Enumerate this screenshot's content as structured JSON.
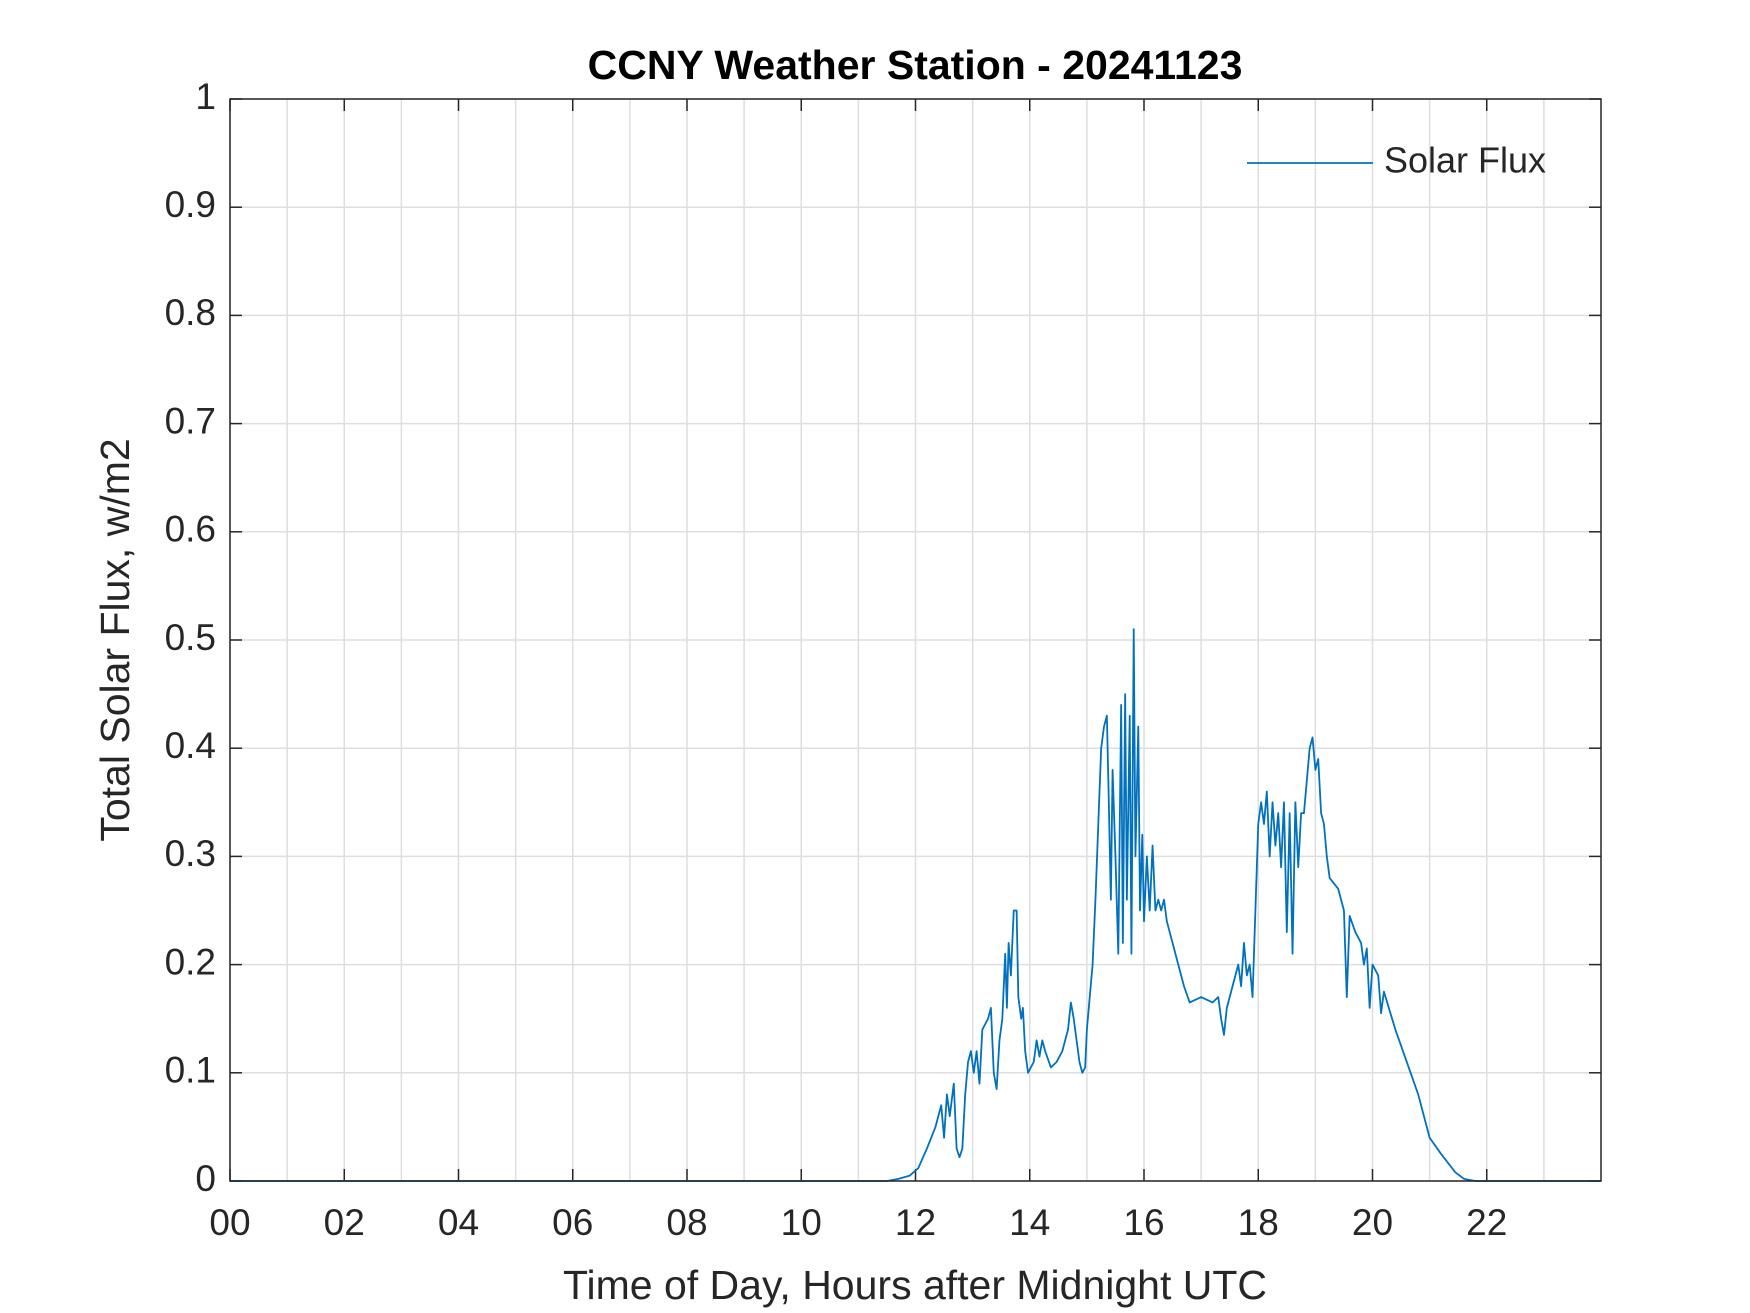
{
  "chart_data": {
    "type": "line",
    "title": "CCNY Weather Station - 20241123",
    "xlabel": "Time of Day, Hours after Midnight UTC",
    "ylabel": "Total Solar Flux, w/m2",
    "xlim": [
      0,
      24
    ],
    "ylim": [
      0,
      1
    ],
    "xticks": [
      {
        "value": 0,
        "label": "00"
      },
      {
        "value": 2,
        "label": "02"
      },
      {
        "value": 4,
        "label": "04"
      },
      {
        "value": 6,
        "label": "06"
      },
      {
        "value": 8,
        "label": "08"
      },
      {
        "value": 10,
        "label": "10"
      },
      12,
      14,
      16,
      18,
      20,
      22
    ],
    "minor_xgrid": [
      1,
      3,
      5,
      7,
      9,
      11,
      13,
      15,
      17,
      19,
      21,
      23
    ],
    "yticks": [
      0,
      0.1,
      0.2,
      0.3,
      0.4,
      0.5,
      0.6,
      0.7,
      0.8,
      0.9,
      1
    ],
    "grid": true,
    "legend": "upper right",
    "x": [
      0,
      11.5,
      11.7,
      11.9,
      12.05,
      12.2,
      12.35,
      12.45,
      12.5,
      12.55,
      12.6,
      12.67,
      12.72,
      12.77,
      12.82,
      12.87,
      12.92,
      12.97,
      13.02,
      13.07,
      13.12,
      13.17,
      13.27,
      13.32,
      13.37,
      13.42,
      13.47,
      13.52,
      13.57,
      13.6,
      13.63,
      13.67,
      13.72,
      13.77,
      13.8,
      13.85,
      13.88,
      13.92,
      13.97,
      14.07,
      14.12,
      14.17,
      14.22,
      14.27,
      14.37,
      14.47,
      14.57,
      14.67,
      14.72,
      14.77,
      14.82,
      14.87,
      14.92,
      14.97,
      15.0,
      15.05,
      15.1,
      15.15,
      15.2,
      15.25,
      15.3,
      15.35,
      15.38,
      15.42,
      15.45,
      15.5,
      15.55,
      15.6,
      15.63,
      15.67,
      15.7,
      15.75,
      15.78,
      15.82,
      15.85,
      15.9,
      15.93,
      15.97,
      16.0,
      16.05,
      16.1,
      16.15,
      16.2,
      16.25,
      16.3,
      16.35,
      16.4,
      16.5,
      16.6,
      16.7,
      16.8,
      17.0,
      17.2,
      17.3,
      17.35,
      17.4,
      17.45,
      17.55,
      17.65,
      17.7,
      17.75,
      17.8,
      17.85,
      17.9,
      17.95,
      18.0,
      18.05,
      18.1,
      18.15,
      18.2,
      18.25,
      18.3,
      18.35,
      18.4,
      18.45,
      18.5,
      18.55,
      18.6,
      18.65,
      18.7,
      18.75,
      18.8,
      18.85,
      18.9,
      18.95,
      19.0,
      19.05,
      19.1,
      19.15,
      19.2,
      19.25,
      19.4,
      19.5,
      19.55,
      19.6,
      19.7,
      19.8,
      19.85,
      19.9,
      19.95,
      20.0,
      20.1,
      20.15,
      20.2,
      20.4,
      20.6,
      20.8,
      20.95,
      21.0,
      21.2,
      21.45,
      21.6,
      21.8,
      23.98
    ],
    "series": [
      {
        "name": "Solar Flux",
        "color": "#0072bd",
        "values": [
          0,
          0,
          0.002,
          0.005,
          0.012,
          0.03,
          0.05,
          0.07,
          0.04,
          0.08,
          0.06,
          0.09,
          0.03,
          0.022,
          0.03,
          0.08,
          0.11,
          0.12,
          0.1,
          0.12,
          0.09,
          0.14,
          0.15,
          0.16,
          0.1,
          0.085,
          0.13,
          0.15,
          0.21,
          0.16,
          0.22,
          0.19,
          0.25,
          0.25,
          0.17,
          0.15,
          0.16,
          0.12,
          0.1,
          0.11,
          0.13,
          0.115,
          0.13,
          0.12,
          0.105,
          0.11,
          0.12,
          0.14,
          0.165,
          0.15,
          0.13,
          0.11,
          0.1,
          0.105,
          0.14,
          0.17,
          0.2,
          0.26,
          0.33,
          0.4,
          0.42,
          0.43,
          0.36,
          0.26,
          0.38,
          0.3,
          0.21,
          0.44,
          0.22,
          0.45,
          0.26,
          0.43,
          0.21,
          0.51,
          0.3,
          0.42,
          0.25,
          0.32,
          0.24,
          0.3,
          0.25,
          0.31,
          0.25,
          0.26,
          0.25,
          0.26,
          0.24,
          0.22,
          0.2,
          0.18,
          0.165,
          0.17,
          0.165,
          0.17,
          0.15,
          0.135,
          0.16,
          0.18,
          0.2,
          0.18,
          0.22,
          0.19,
          0.2,
          0.17,
          0.25,
          0.33,
          0.35,
          0.33,
          0.36,
          0.3,
          0.35,
          0.31,
          0.34,
          0.29,
          0.35,
          0.23,
          0.34,
          0.21,
          0.35,
          0.29,
          0.34,
          0.34,
          0.37,
          0.4,
          0.41,
          0.38,
          0.39,
          0.34,
          0.33,
          0.3,
          0.28,
          0.27,
          0.25,
          0.17,
          0.245,
          0.23,
          0.22,
          0.2,
          0.215,
          0.16,
          0.2,
          0.19,
          0.155,
          0.175,
          0.14,
          0.11,
          0.08,
          0.05,
          0.04,
          0.025,
          0.008,
          0.002,
          0,
          0
        ]
      }
    ]
  }
}
